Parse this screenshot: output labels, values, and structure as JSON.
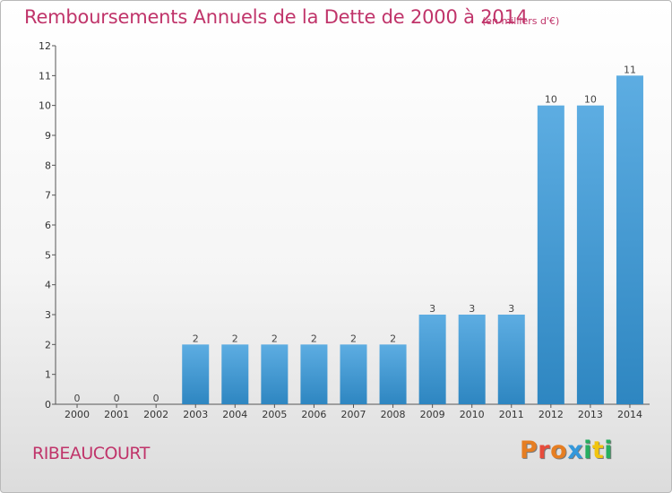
{
  "title": "Remboursements Annuels de la Dette de 2000 à 2014",
  "subtitle": "(en milliers d'€)",
  "commune": "RIBEAUCOURT",
  "logo": {
    "text": "Proxiti",
    "colors": [
      "#e67e22",
      "#e74c3c",
      "#e67e22",
      "#3498db",
      "#27ae60",
      "#f1c40f",
      "#27ae60"
    ]
  },
  "colors": {
    "accent": "#c0346a",
    "bar_top": "#5dade2",
    "bar_bottom": "#2e86c1"
  },
  "chart_data": {
    "type": "bar",
    "categories": [
      "2000",
      "2001",
      "2002",
      "2003",
      "2004",
      "2005",
      "2006",
      "2007",
      "2008",
      "2009",
      "2010",
      "2011",
      "2012",
      "2013",
      "2014"
    ],
    "values": [
      0,
      0,
      0,
      2,
      2,
      2,
      2,
      2,
      2,
      3,
      3,
      3,
      10,
      10,
      11
    ],
    "data_labels": [
      "0",
      "0",
      "0",
      "2",
      "2",
      "2",
      "2",
      "2",
      "2",
      "3",
      "3",
      "3",
      "10",
      "10",
      "11"
    ],
    "ylim": [
      0,
      12
    ],
    "yticks": [
      "0",
      "1",
      "2",
      "3",
      "4",
      "5",
      "6",
      "7",
      "8",
      "9",
      "10",
      "11",
      "12"
    ],
    "grid": false,
    "legend": "none"
  }
}
